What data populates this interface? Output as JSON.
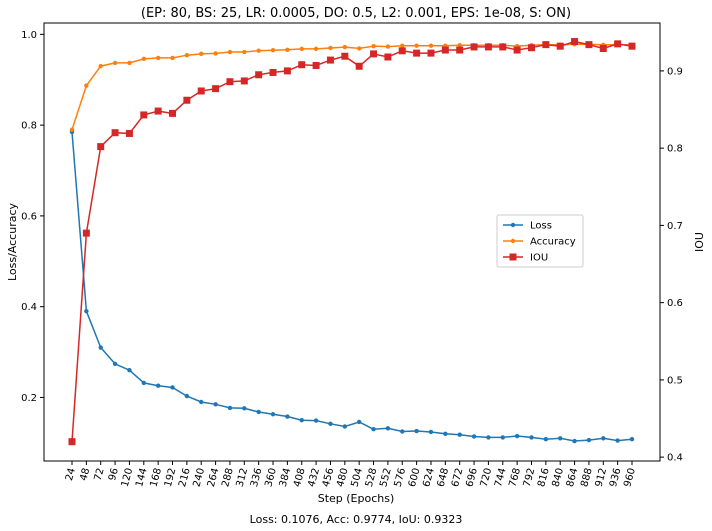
{
  "chart_data": {
    "type": "line",
    "title": "(EP: 80, BS: 25, LR: 0.0005, DO: 0.5, L2: 0.001, EPS: 1e-08, S: ON)",
    "xlabel": "Step (Epochs)",
    "ylabel": "Loss/Accuracy",
    "y2label": "IOU",
    "footer": "Loss: 0.1076, Acc: 0.9774, IoU: 0.9323",
    "x": [
      24,
      48,
      72,
      96,
      120,
      144,
      168,
      192,
      216,
      240,
      264,
      288,
      312,
      336,
      360,
      384,
      408,
      432,
      456,
      480,
      504,
      528,
      552,
      576,
      600,
      624,
      648,
      672,
      696,
      720,
      744,
      768,
      792,
      816,
      840,
      864,
      888,
      912,
      936,
      960
    ],
    "ylim": [
      0.06,
      1.025
    ],
    "y2lim": [
      0.395,
      0.962
    ],
    "yticks": [
      0.2,
      0.4,
      0.6,
      0.8,
      1.0
    ],
    "yticklabels": [
      "0.2",
      "0.4",
      "0.6",
      "0.8",
      "1.0"
    ],
    "y2ticks": [
      0.4,
      0.5,
      0.6,
      0.7,
      0.8,
      0.9
    ],
    "y2ticklabels": [
      "0.4",
      "0.5",
      "0.6",
      "0.7",
      "0.8",
      "0.9"
    ],
    "grid": false,
    "legend_position": "center-right",
    "series": [
      {
        "name": "Loss",
        "axis": "left",
        "color": "#1f77b4",
        "marker": "dot",
        "values": [
          0.785,
          0.39,
          0.31,
          0.274,
          0.26,
          0.232,
          0.226,
          0.222,
          0.203,
          0.19,
          0.185,
          0.177,
          0.176,
          0.168,
          0.163,
          0.158,
          0.15,
          0.149,
          0.142,
          0.136,
          0.146,
          0.13,
          0.132,
          0.125,
          0.126,
          0.124,
          0.12,
          0.118,
          0.114,
          0.112,
          0.112,
          0.115,
          0.112,
          0.108,
          0.11,
          0.104,
          0.106,
          0.11,
          0.105,
          0.108
        ]
      },
      {
        "name": "Accuracy",
        "axis": "left",
        "color": "#ff7f0e",
        "marker": "dot",
        "values": [
          0.79,
          0.887,
          0.93,
          0.937,
          0.937,
          0.946,
          0.948,
          0.948,
          0.954,
          0.957,
          0.958,
          0.961,
          0.961,
          0.964,
          0.965,
          0.966,
          0.968,
          0.968,
          0.97,
          0.972,
          0.969,
          0.974,
          0.973,
          0.975,
          0.975,
          0.975,
          0.975,
          0.976,
          0.976,
          0.976,
          0.976,
          0.974,
          0.976,
          0.977,
          0.977,
          0.978,
          0.978,
          0.977,
          0.977,
          0.977
        ]
      },
      {
        "name": "IOU",
        "axis": "right",
        "color": "#d62728",
        "marker": "square",
        "values": [
          0.42,
          0.69,
          0.802,
          0.82,
          0.819,
          0.843,
          0.848,
          0.845,
          0.862,
          0.874,
          0.877,
          0.886,
          0.887,
          0.895,
          0.898,
          0.9,
          0.908,
          0.907,
          0.914,
          0.919,
          0.906,
          0.922,
          0.918,
          0.926,
          0.923,
          0.923,
          0.927,
          0.927,
          0.931,
          0.931,
          0.931,
          0.927,
          0.93,
          0.934,
          0.932,
          0.938,
          0.934,
          0.929,
          0.935,
          0.932
        ]
      }
    ]
  }
}
